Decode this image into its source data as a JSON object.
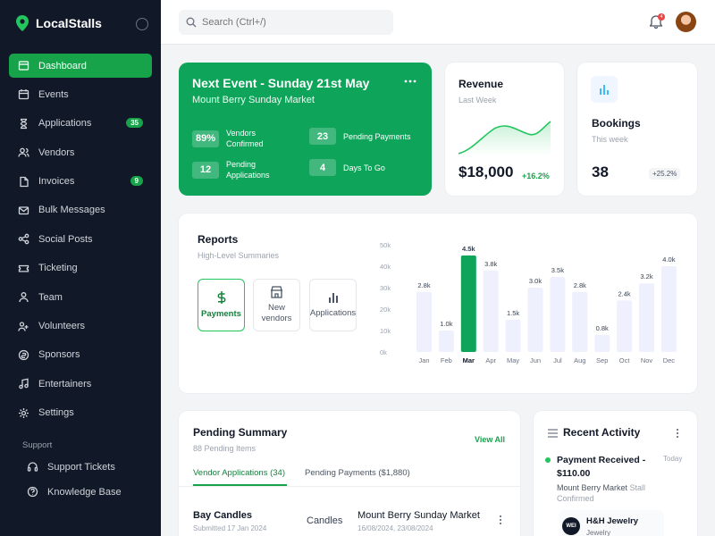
{
  "app": {
    "name": "LocalStalls"
  },
  "sidebar": {
    "items": [
      {
        "label": "Dashboard",
        "icon": "dashboard-icon",
        "active": true
      },
      {
        "label": "Events",
        "icon": "calendar-icon"
      },
      {
        "label": "Applications",
        "icon": "hourglass-icon",
        "badge": "35"
      },
      {
        "label": "Vendors",
        "icon": "users-icon"
      },
      {
        "label": "Invoices",
        "icon": "file-icon",
        "badge": "9"
      },
      {
        "label": "Bulk Messages",
        "icon": "mail-icon"
      },
      {
        "label": "Social Posts",
        "icon": "share-icon"
      },
      {
        "label": "Ticketing",
        "icon": "ticket-icon"
      },
      {
        "label": "Team",
        "icon": "team-icon"
      },
      {
        "label": "Volunteers",
        "icon": "volunteer-icon"
      },
      {
        "label": "Sponsors",
        "icon": "sponsor-icon"
      },
      {
        "label": "Entertainers",
        "icon": "music-icon"
      },
      {
        "label": "Settings",
        "icon": "gear-icon"
      }
    ],
    "support_label": "Support",
    "support_items": [
      {
        "label": "Support Tickets",
        "icon": "headset-icon"
      },
      {
        "label": "Knowledge Base",
        "icon": "help-icon"
      }
    ]
  },
  "topbar": {
    "search_placeholder": "Search (Ctrl+/)",
    "notification_count": "4"
  },
  "event": {
    "title": "Next Event - Sunday 21st May",
    "subtitle": "Mount Berry Sunday Market",
    "stats": [
      {
        "value": "89%",
        "label1": "Vendors",
        "label2": "Confirmed"
      },
      {
        "value": "23",
        "label1": "Pending Payments",
        "label2": ""
      },
      {
        "value": "12",
        "label1": "Pending",
        "label2": "Applications"
      },
      {
        "value": "4",
        "label1": "Days To Go",
        "label2": ""
      }
    ]
  },
  "revenue": {
    "title": "Revenue",
    "subtitle": "Last Week",
    "value": "$18,000",
    "change": "+16.2%"
  },
  "bookings": {
    "title": "Bookings",
    "subtitle": "This week",
    "value": "38",
    "change": "+25.2%"
  },
  "reports": {
    "title": "Reports",
    "subtitle": "High-Level Summaries",
    "tiles": [
      {
        "label": "Payments",
        "icon": "dollar-icon",
        "active": true
      },
      {
        "label": "New vendors",
        "icon": "store-icon"
      },
      {
        "label": "Applications",
        "icon": "bar-chart-icon"
      }
    ]
  },
  "chart_data": {
    "type": "bar",
    "categories": [
      "Jan",
      "Feb",
      "Mar",
      "Apr",
      "May",
      "Jun",
      "Jul",
      "Aug",
      "Sep",
      "Oct",
      "Nov",
      "Dec"
    ],
    "values": [
      2.8,
      1.0,
      4.5,
      3.8,
      1.5,
      3.0,
      3.5,
      2.8,
      0.8,
      2.4,
      3.2,
      4.0
    ],
    "data_labels": [
      "2.8k",
      "1.0k",
      "4.5k",
      "3.8k",
      "1.5k",
      "3.0k",
      "3.5k",
      "2.8k",
      "0.8k",
      "2.4k",
      "3.2k",
      "4.0k"
    ],
    "ytick_labels": [
      "50k",
      "40k",
      "30k",
      "20k",
      "10k",
      "0k"
    ],
    "highlight_index": 2,
    "colors": {
      "default": "#eef1fd",
      "highlight": "#0ea45a"
    }
  },
  "pending": {
    "title": "Pending Summary",
    "subtitle": "88 Pending Items",
    "view_all": "View All",
    "tabs": [
      "Vendor Applications (34)",
      "Pending Payments ($1,880)"
    ],
    "row": {
      "name": "Bay Candles",
      "submitted": "Submitted 17 Jan 2024",
      "category": "Candles",
      "event": "Mount Berry Sunday Market",
      "dates": "16/08/2024, 23/08/2024"
    }
  },
  "activity": {
    "title": "Recent Activity",
    "item_title": "Payment Received - $110.00",
    "item_time": "Today",
    "item_desc_bold": "Mount Berry Market",
    "item_desc": "Stall Confirmed",
    "vendor_initials": "WEI",
    "vendor_name": "H&H Jewelry",
    "vendor_category": "Jewelry"
  }
}
